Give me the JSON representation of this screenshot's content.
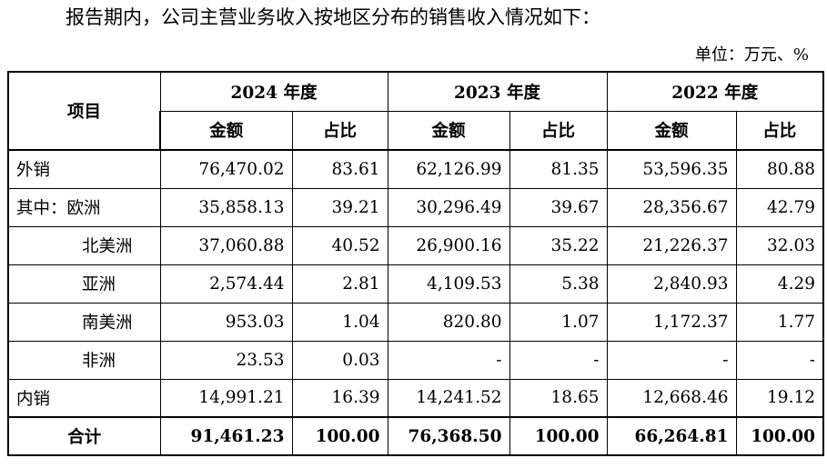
{
  "intro": "报告期内，公司主营业务收入按地区分布的销售收入情况如下：",
  "unit": "单位：万元、%",
  "table": {
    "item_header": "项目",
    "years": [
      "2024 年度",
      "2023 年度",
      "2022 年度"
    ],
    "amount_header": "金额",
    "share_header": "占比",
    "rows": [
      {
        "label": "外销",
        "cells": [
          "76,470.02",
          "83.61",
          "62,126.99",
          "81.35",
          "53,596.35",
          "80.88"
        ]
      },
      {
        "label": "其中：欧洲",
        "cells": [
          "35,858.13",
          "39.21",
          "30,296.49",
          "39.67",
          "28,356.67",
          "42.79"
        ]
      },
      {
        "label": "北美洲",
        "cells": [
          "37,060.88",
          "40.52",
          "26,900.16",
          "35.22",
          "21,226.37",
          "32.03"
        ]
      },
      {
        "label": "亚洲",
        "cells": [
          "2,574.44",
          "2.81",
          "4,109.53",
          "5.38",
          "2,840.93",
          "4.29"
        ]
      },
      {
        "label": "南美洲",
        "cells": [
          "953.03",
          "1.04",
          "820.80",
          "1.07",
          "1,172.37",
          "1.77"
        ]
      },
      {
        "label": "非洲",
        "cells": [
          "23.53",
          "0.03",
          "-",
          "-",
          "-",
          "-"
        ]
      },
      {
        "label": "内销",
        "cells": [
          "14,991.21",
          "16.39",
          "14,241.52",
          "18.65",
          "12,668.46",
          "19.12"
        ]
      }
    ],
    "total": {
      "label": "合计",
      "cells": [
        "91,461.23",
        "100.00",
        "76,368.50",
        "100.00",
        "66,264.81",
        "100.00"
      ]
    }
  }
}
